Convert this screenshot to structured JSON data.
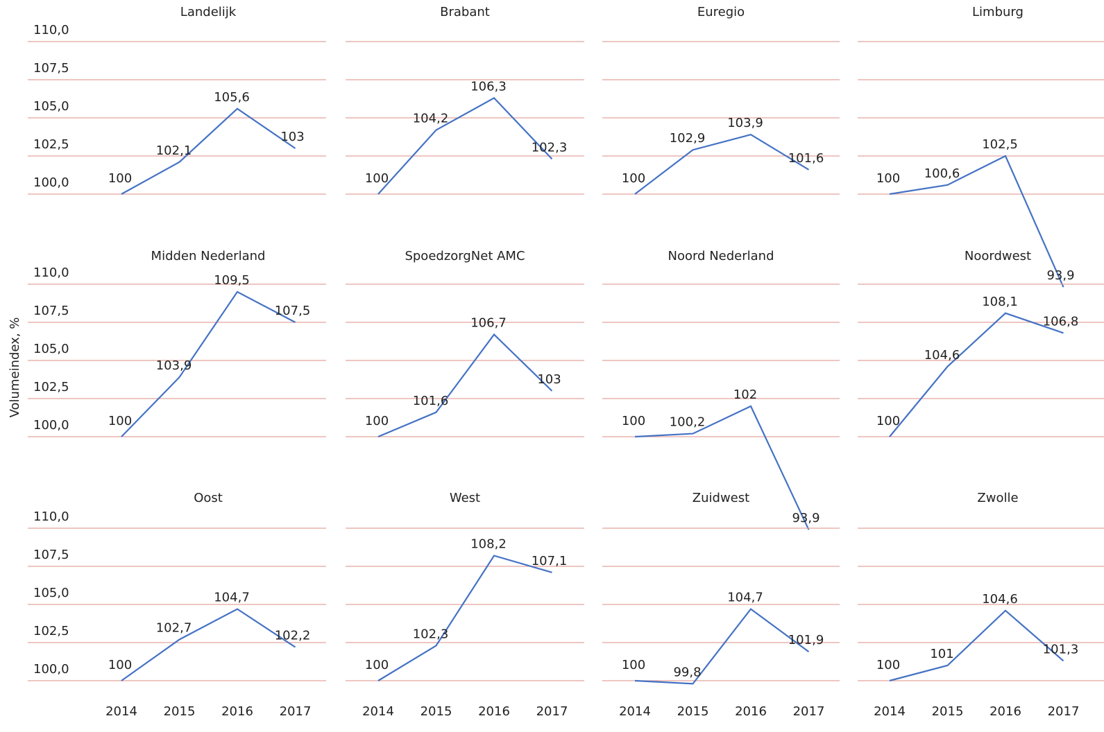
{
  "chart_data": [
    {
      "type": "line",
      "title": "Landelijk",
      "categories": [
        "2014",
        "2015",
        "2016",
        "2017"
      ],
      "values": [
        100,
        102.1,
        105.6,
        103
      ],
      "value_labels": [
        "100",
        "102,1",
        "105,6",
        "103"
      ],
      "color": "#4472c4",
      "ylim": [
        100,
        110
      ],
      "yticks": [
        {
          "value": 100,
          "label": "100,0"
        },
        {
          "value": 102.5,
          "label": "102,5"
        },
        {
          "value": 105,
          "label": "105,0"
        },
        {
          "value": 107.5,
          "label": "107,5"
        },
        {
          "value": 110,
          "label": "110,0"
        }
      ],
      "grid": true
    },
    {
      "type": "line",
      "title": "Brabant",
      "categories": [
        "2014",
        "2015",
        "2016",
        "2017"
      ],
      "values": [
        100,
        104.2,
        106.3,
        102.3
      ],
      "value_labels": [
        "100",
        "104,2",
        "106,3",
        "102,3"
      ],
      "color": "#4472c4",
      "ylim": [
        100,
        110
      ],
      "yticks": [
        {
          "value": 100,
          "label": "100,0"
        },
        {
          "value": 102.5,
          "label": "102,5"
        },
        {
          "value": 105,
          "label": "105,0"
        },
        {
          "value": 107.5,
          "label": "107,5"
        },
        {
          "value": 110,
          "label": "110,0"
        }
      ],
      "grid": true
    },
    {
      "type": "line",
      "title": "Euregio",
      "categories": [
        "2014",
        "2015",
        "2016",
        "2017"
      ],
      "values": [
        100,
        102.9,
        103.9,
        101.6
      ],
      "value_labels": [
        "100",
        "102,9",
        "103,9",
        "101,6"
      ],
      "color": "#4472c4",
      "ylim": [
        100,
        110
      ],
      "yticks": [
        {
          "value": 100,
          "label": "100,0"
        },
        {
          "value": 102.5,
          "label": "102,5"
        },
        {
          "value": 105,
          "label": "105,0"
        },
        {
          "value": 107.5,
          "label": "107,5"
        },
        {
          "value": 110,
          "label": "110,0"
        }
      ],
      "grid": true
    },
    {
      "type": "line",
      "title": "Limburg",
      "categories": [
        "2014",
        "2015",
        "2016",
        "2017"
      ],
      "values": [
        100,
        100.6,
        102.5,
        93.9
      ],
      "value_labels": [
        "100",
        "100,6",
        "102,5",
        "93,9"
      ],
      "color": "#4472c4",
      "ylim": [
        100,
        110
      ],
      "yticks": [
        {
          "value": 100,
          "label": "100,0"
        },
        {
          "value": 102.5,
          "label": "102,5"
        },
        {
          "value": 105,
          "label": "105,0"
        },
        {
          "value": 107.5,
          "label": "107,5"
        },
        {
          "value": 110,
          "label": "110,0"
        }
      ],
      "grid": true
    },
    {
      "type": "line",
      "title": "Midden Nederland",
      "ylabel": "Volumeindex, %",
      "categories": [
        "2014",
        "2015",
        "2016",
        "2017"
      ],
      "values": [
        100,
        103.9,
        109.5,
        107.5
      ],
      "value_labels": [
        "100",
        "103,9",
        "109,5",
        "107,5"
      ],
      "color": "#4472c4",
      "ylim": [
        100,
        110
      ],
      "yticks": [
        {
          "value": 100,
          "label": "100,0"
        },
        {
          "value": 102.5,
          "label": "102,5"
        },
        {
          "value": 105,
          "label": "105,0"
        },
        {
          "value": 107.5,
          "label": "107,5"
        },
        {
          "value": 110,
          "label": "110,0"
        }
      ],
      "grid": true
    },
    {
      "type": "line",
      "title": "SpoedzorgNet AMC",
      "categories": [
        "2014",
        "2015",
        "2016",
        "2017"
      ],
      "values": [
        100,
        101.6,
        106.7,
        103
      ],
      "value_labels": [
        "100",
        "101,6",
        "106,7",
        "103"
      ],
      "color": "#4472c4",
      "ylim": [
        100,
        110
      ],
      "yticks": [
        {
          "value": 100,
          "label": "100,0"
        },
        {
          "value": 102.5,
          "label": "102,5"
        },
        {
          "value": 105,
          "label": "105,0"
        },
        {
          "value": 107.5,
          "label": "107,5"
        },
        {
          "value": 110,
          "label": "110,0"
        }
      ],
      "grid": true
    },
    {
      "type": "line",
      "title": "Noord Nederland",
      "categories": [
        "2014",
        "2015",
        "2016",
        "2017"
      ],
      "values": [
        100,
        100.2,
        102,
        93.9
      ],
      "value_labels": [
        "100",
        "100,2",
        "102",
        "93,9"
      ],
      "color": "#4472c4",
      "ylim": [
        100,
        110
      ],
      "yticks": [
        {
          "value": 100,
          "label": "100,0"
        },
        {
          "value": 102.5,
          "label": "102,5"
        },
        {
          "value": 105,
          "label": "105,0"
        },
        {
          "value": 107.5,
          "label": "107,5"
        },
        {
          "value": 110,
          "label": "110,0"
        }
      ],
      "grid": true
    },
    {
      "type": "line",
      "title": "Noordwest",
      "categories": [
        "2014",
        "2015",
        "2016",
        "2017"
      ],
      "values": [
        100,
        104.6,
        108.1,
        106.8
      ],
      "value_labels": [
        "100",
        "104,6",
        "108,1",
        "106,8"
      ],
      "color": "#4472c4",
      "ylim": [
        100,
        110
      ],
      "yticks": [
        {
          "value": 100,
          "label": "100,0"
        },
        {
          "value": 102.5,
          "label": "102,5"
        },
        {
          "value": 105,
          "label": "105,0"
        },
        {
          "value": 107.5,
          "label": "107,5"
        },
        {
          "value": 110,
          "label": "110,0"
        }
      ],
      "grid": true
    },
    {
      "type": "line",
      "title": "Oost",
      "categories": [
        "2014",
        "2015",
        "2016",
        "2017"
      ],
      "values": [
        100,
        102.7,
        104.7,
        102.2
      ],
      "value_labels": [
        "100",
        "102,7",
        "104,7",
        "102,2"
      ],
      "color": "#4472c4",
      "ylim": [
        100,
        110
      ],
      "yticks": [
        {
          "value": 100,
          "label": "100,0"
        },
        {
          "value": 102.5,
          "label": "102,5"
        },
        {
          "value": 105,
          "label": "105,0"
        },
        {
          "value": 107.5,
          "label": "107,5"
        },
        {
          "value": 110,
          "label": "110,0"
        }
      ],
      "grid": true
    },
    {
      "type": "line",
      "title": "West",
      "categories": [
        "2014",
        "2015",
        "2016",
        "2017"
      ],
      "values": [
        100,
        102.3,
        108.2,
        107.1
      ],
      "value_labels": [
        "100",
        "102,3",
        "108,2",
        "107,1"
      ],
      "color": "#4472c4",
      "ylim": [
        100,
        110
      ],
      "yticks": [
        {
          "value": 100,
          "label": "100,0"
        },
        {
          "value": 102.5,
          "label": "102,5"
        },
        {
          "value": 105,
          "label": "105,0"
        },
        {
          "value": 107.5,
          "label": "107,5"
        },
        {
          "value": 110,
          "label": "110,0"
        }
      ],
      "grid": true
    },
    {
      "type": "line",
      "title": "Zuidwest",
      "categories": [
        "2014",
        "2015",
        "2016",
        "2017"
      ],
      "values": [
        100,
        99.8,
        104.7,
        101.9
      ],
      "value_labels": [
        "100",
        "99,8",
        "104,7",
        "101,9"
      ],
      "color": "#4472c4",
      "ylim": [
        100,
        110
      ],
      "yticks": [
        {
          "value": 100,
          "label": "100,0"
        },
        {
          "value": 102.5,
          "label": "102,5"
        },
        {
          "value": 105,
          "label": "105,0"
        },
        {
          "value": 107.5,
          "label": "107,5"
        },
        {
          "value": 110,
          "label": "110,0"
        }
      ],
      "grid": true
    },
    {
      "type": "line",
      "title": "Zwolle",
      "categories": [
        "2014",
        "2015",
        "2016",
        "2017"
      ],
      "values": [
        100,
        101,
        104.6,
        101.3
      ],
      "value_labels": [
        "100",
        "101",
        "104,6",
        "101,3"
      ],
      "color": "#4472c4",
      "ylim": [
        100,
        110
      ],
      "yticks": [
        {
          "value": 100,
          "label": "100,0"
        },
        {
          "value": 102.5,
          "label": "102,5"
        },
        {
          "value": 105,
          "label": "105,0"
        },
        {
          "value": 107.5,
          "label": "107,5"
        },
        {
          "value": 110,
          "label": "110,0"
        }
      ],
      "grid": true
    }
  ]
}
